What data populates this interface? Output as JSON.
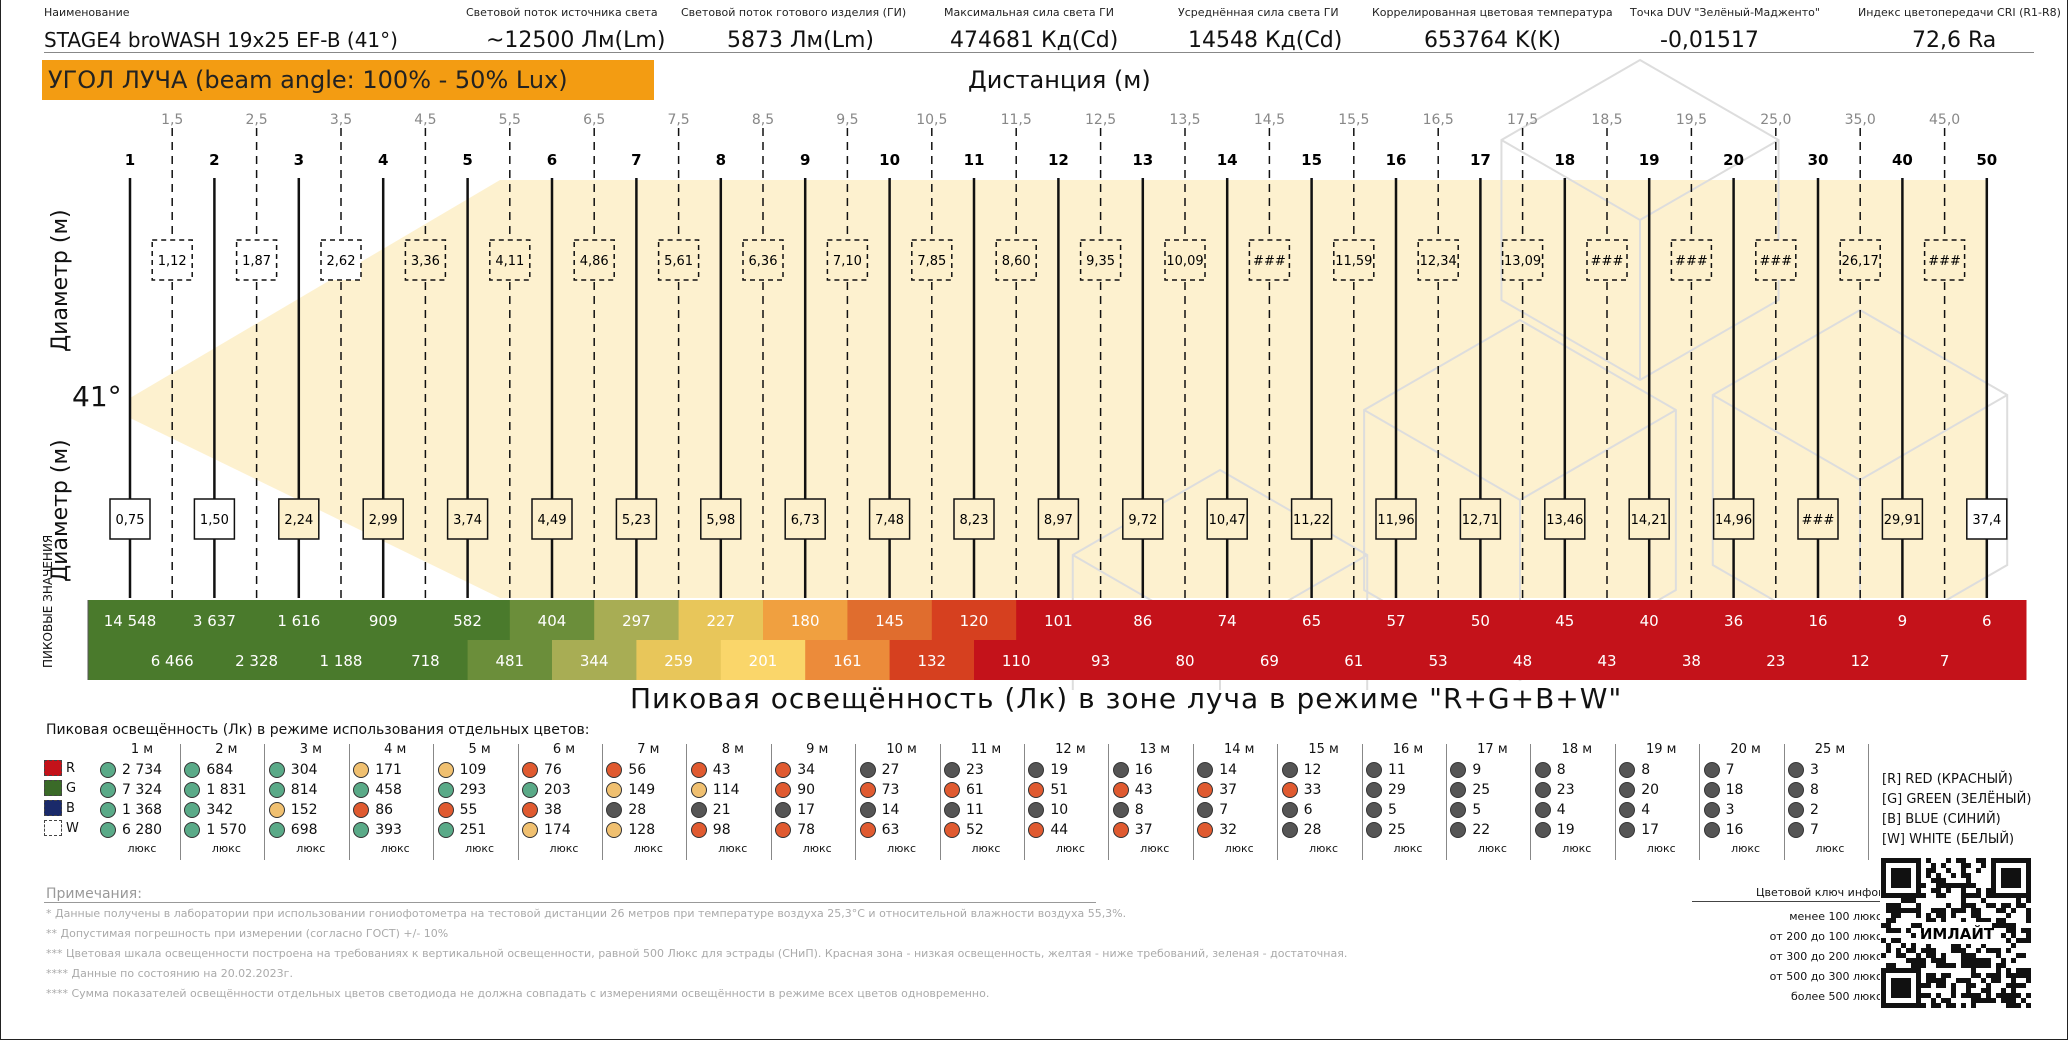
{
  "header": {
    "items": [
      {
        "label": "Наименование",
        "value": "STAGE4 broWASH 19x25 EF-B (41°)"
      },
      {
        "label": "Световой поток источника света",
        "value": "~12500 Лм(Lm)"
      },
      {
        "label": "Световой поток готового изделия (ГИ)",
        "value": "5873 Лм(Lm)"
      },
      {
        "label": "Максимальная сила света ГИ",
        "value": "474681 Кд(Cd)"
      },
      {
        "label": "Усреднённая сила света ГИ",
        "value": "14548 Кд(Cd)"
      },
      {
        "label": "Коррелированная цветовая температура",
        "value": "653764 K(K)"
      },
      {
        "label": "Точка DUV \"Зелёный-Мадженто\"",
        "value": "-0,01517"
      },
      {
        "label": "Индекс цветопередачи CRI (R1-R8)",
        "value": "72,6 Ra"
      }
    ],
    "beam_banner": "УГОЛ ЛУЧА (beam angle: 100% - 50% Lux)",
    "distance_title": "Дистанция (м)"
  },
  "beam": {
    "angle_label": "41°",
    "diameter_label": "Диаметр (м)",
    "peak_side_label": "ПИКОВЫЕ ЗНАЧЕНИЯ",
    "peak_title": "Пиковая освещённость (Лк) в зоне луча в режиме \"R+G+B+W\""
  },
  "chart_data": {
    "type": "table",
    "title": "УГОЛ ЛУЧА (beam angle: 100% - 50% Lux)",
    "xlabel": "Дистанция (м)",
    "ylabel": "Диаметр (м)",
    "beam_angle": "41°",
    "main_distances": [
      "1",
      "2",
      "3",
      "4",
      "5",
      "6",
      "7",
      "8",
      "9",
      "10",
      "11",
      "12",
      "13",
      "14",
      "15",
      "16",
      "17",
      "18",
      "19",
      "20",
      "30",
      "40",
      "50"
    ],
    "main_diameters": [
      "0,75",
      "1,50",
      "2,24",
      "2,99",
      "3,74",
      "4,49",
      "5,23",
      "5,98",
      "6,73",
      "7,48",
      "8,23",
      "8,97",
      "9,72",
      "10,47",
      "11,22",
      "11,96",
      "12,71",
      "13,46",
      "14,21",
      "14,96",
      "###",
      "29,91",
      "37,4"
    ],
    "main_peak_lux": [
      "14 548",
      "3 637",
      "1 616",
      "909",
      "582",
      "404",
      "297",
      "227",
      "180",
      "145",
      "120",
      "101",
      "86",
      "74",
      "65",
      "57",
      "50",
      "45",
      "40",
      "36",
      "16",
      "9",
      "6"
    ],
    "half_distances": [
      "1,5",
      "2,5",
      "3,5",
      "4,5",
      "5,5",
      "6,5",
      "7,5",
      "8,5",
      "9,5",
      "10,5",
      "11,5",
      "12,5",
      "13,5",
      "14,5",
      "15,5",
      "16,5",
      "17,5",
      "18,5",
      "19,5",
      "25,0",
      "35,0",
      "45,0"
    ],
    "half_diameters": [
      "1,12",
      "1,87",
      "2,62",
      "3,36",
      "4,11",
      "4,86",
      "5,61",
      "6,36",
      "7,10",
      "7,85",
      "8,60",
      "9,35",
      "10,09",
      "###",
      "11,59",
      "12,34",
      "13,09",
      "###",
      "###",
      "###",
      "26,17",
      "###"
    ],
    "half_peak_lux": [
      "6 466",
      "2 328",
      "1 188",
      "718",
      "481",
      "344",
      "259",
      "201",
      "161",
      "132",
      "110",
      "93",
      "80",
      "69",
      "61",
      "53",
      "48",
      "43",
      "38",
      "23",
      "12",
      "7"
    ],
    "band_colors": [
      "#4a7a2c",
      "#4a7a2c",
      "#4a7a2c",
      "#4a7a2c",
      "#4a7a2c",
      "#6b8e3a",
      "#a8ad54",
      "#e8c65a",
      "#f0a040",
      "#e06d2e",
      "#d6401f",
      "#c4121a",
      "#c4121a",
      "#c4121a",
      "#c4121a",
      "#c4121a",
      "#c4121a",
      "#c4121a",
      "#c4121a",
      "#c4121a",
      "#c4121a",
      "#c4121a",
      "#c4121a"
    ],
    "half_band_colors": [
      "#4a7a2c",
      "#4a7a2c",
      "#4a7a2c",
      "#4a7a2c",
      "#6b8e3a",
      "#a8ad54",
      "#e8c65a",
      "#fad66a",
      "#ec8b3a",
      "#d6401f",
      "#c4121a",
      "#c4121a",
      "#c4121a",
      "#c4121a",
      "#c4121a",
      "#c4121a",
      "#c4121a",
      "#c4121a",
      "#c4121a",
      "#c4121a",
      "#c4121a",
      "#c4121a"
    ]
  },
  "color_mode": {
    "title": "Пиковая освещённость (Лк) в режиме использования отдельных цветов:",
    "channels": [
      {
        "letter": "R",
        "color": "#c4121a"
      },
      {
        "letter": "G",
        "color": "#3a6a28"
      },
      {
        "letter": "B",
        "color": "#1a2a6a"
      },
      {
        "letter": "W",
        "color": "#ffffff"
      }
    ],
    "unit": "люкс",
    "columns": [
      {
        "dist": "1 м",
        "values": [
          "2 734",
          "7 324",
          "1 368",
          "6 280"
        ],
        "dots": [
          "#5aaa88",
          "#5aaa88",
          "#5aaa88",
          "#5aaa88"
        ]
      },
      {
        "dist": "2 м",
        "values": [
          "684",
          "1 831",
          "342",
          "1 570"
        ],
        "dots": [
          "#5aaa88",
          "#5aaa88",
          "#5aaa88",
          "#5aaa88"
        ]
      },
      {
        "dist": "3 м",
        "values": [
          "304",
          "814",
          "152",
          "698"
        ],
        "dots": [
          "#5aaa88",
          "#5aaa88",
          "#f0c070",
          "#5aaa88"
        ]
      },
      {
        "dist": "4 м",
        "values": [
          "171",
          "458",
          "86",
          "393"
        ],
        "dots": [
          "#f0c070",
          "#5aaa88",
          "#e05a30",
          "#5aaa88"
        ]
      },
      {
        "dist": "5 м",
        "values": [
          "109",
          "293",
          "55",
          "251"
        ],
        "dots": [
          "#f0c070",
          "#5aaa88",
          "#e05a30",
          "#5aaa88"
        ]
      },
      {
        "dist": "6 м",
        "values": [
          "76",
          "203",
          "38",
          "174"
        ],
        "dots": [
          "#e05a30",
          "#5aaa88",
          "#e05a30",
          "#f0c070"
        ]
      },
      {
        "dist": "7 м",
        "values": [
          "56",
          "149",
          "28",
          "128"
        ],
        "dots": [
          "#e05a30",
          "#f0c070",
          "#555555",
          "#f0c070"
        ]
      },
      {
        "dist": "8 м",
        "values": [
          "43",
          "114",
          "21",
          "98"
        ],
        "dots": [
          "#e05a30",
          "#f0c070",
          "#555555",
          "#e05a30"
        ]
      },
      {
        "dist": "9 м",
        "values": [
          "34",
          "90",
          "17",
          "78"
        ],
        "dots": [
          "#e05a30",
          "#e05a30",
          "#555555",
          "#e05a30"
        ]
      },
      {
        "dist": "10 м",
        "values": [
          "27",
          "73",
          "14",
          "63"
        ],
        "dots": [
          "#555555",
          "#e05a30",
          "#555555",
          "#e05a30"
        ]
      },
      {
        "dist": "11 м",
        "values": [
          "23",
          "61",
          "11",
          "52"
        ],
        "dots": [
          "#555555",
          "#e05a30",
          "#555555",
          "#e05a30"
        ]
      },
      {
        "dist": "12 м",
        "values": [
          "19",
          "51",
          "10",
          "44"
        ],
        "dots": [
          "#555555",
          "#e05a30",
          "#555555",
          "#e05a30"
        ]
      },
      {
        "dist": "13 м",
        "values": [
          "16",
          "43",
          "8",
          "37"
        ],
        "dots": [
          "#555555",
          "#e05a30",
          "#555555",
          "#e05a30"
        ]
      },
      {
        "dist": "14 м",
        "values": [
          "14",
          "37",
          "7",
          "32"
        ],
        "dots": [
          "#555555",
          "#e05a30",
          "#555555",
          "#e05a30"
        ]
      },
      {
        "dist": "15 м",
        "values": [
          "12",
          "33",
          "6",
          "28"
        ],
        "dots": [
          "#555555",
          "#e05a30",
          "#555555",
          "#555555"
        ]
      },
      {
        "dist": "16 м",
        "values": [
          "11",
          "29",
          "5",
          "25"
        ],
        "dots": [
          "#555555",
          "#555555",
          "#555555",
          "#555555"
        ]
      },
      {
        "dist": "17 м",
        "values": [
          "9",
          "25",
          "5",
          "22"
        ],
        "dots": [
          "#555555",
          "#555555",
          "#555555",
          "#555555"
        ]
      },
      {
        "dist": "18 м",
        "values": [
          "8",
          "23",
          "4",
          "19"
        ],
        "dots": [
          "#555555",
          "#555555",
          "#555555",
          "#555555"
        ]
      },
      {
        "dist": "19 м",
        "values": [
          "8",
          "20",
          "4",
          "17"
        ],
        "dots": [
          "#555555",
          "#555555",
          "#555555",
          "#555555"
        ]
      },
      {
        "dist": "20 м",
        "values": [
          "7",
          "18",
          "3",
          "16"
        ],
        "dots": [
          "#555555",
          "#555555",
          "#555555",
          "#555555"
        ]
      },
      {
        "dist": "25 м",
        "values": [
          "3",
          "8",
          "2",
          "7"
        ],
        "dots": [
          "#555555",
          "#555555",
          "#555555",
          "#555555"
        ]
      }
    ],
    "legend": [
      "[R] RED (КРАСНЫЙ)",
      "[G] GREEN (ЗЕЛЁНЫЙ)",
      "[B] BLUE (СИНИЙ)",
      "[W] WHITE (БЕЛЫЙ)"
    ]
  },
  "notes": {
    "title": "Примечания:",
    "lines": [
      "* Данные получены в лаборатории при использовании гониофотометра на тестовой дистанции 26 метров при температуре воздуха 25,3°С и относительной влажности воздуха 55,3%.",
      "** Допустимая погрешность при измерении (согласно ГОСТ) +/- 10%",
      "*** Цветовая шкала освещенности построена на требованиях к вертикальной освещенности, равной 500 Люкс для эстрады (СНиП). Красная зона - низкая освещенность, желтая - ниже требований, зеленая - достаточная.",
      "**** Данные по состоянию на 20.02.2023г.",
      "**** Сумма показателей освещённости отдельных цветов светодиода не должна совпадать с измерениями освещённости в режиме всех цветов одновременно."
    ]
  },
  "color_key": {
    "title": "Цветовой ключ инфографики",
    "items": [
      {
        "label": "менее 100 люкс",
        "color": "#c4121a"
      },
      {
        "label": "от 200 до 100 люкс",
        "color": "#fad66a"
      },
      {
        "label": "от 300 до 200 люкс",
        "color": "#c8c48a"
      },
      {
        "label": "от 500 до 300 люкс",
        "color": "#7aa84a"
      },
      {
        "label": "более 500 люкс",
        "color": "#3a6a28"
      }
    ],
    "qr_text": "ИМЛАЙТ"
  }
}
